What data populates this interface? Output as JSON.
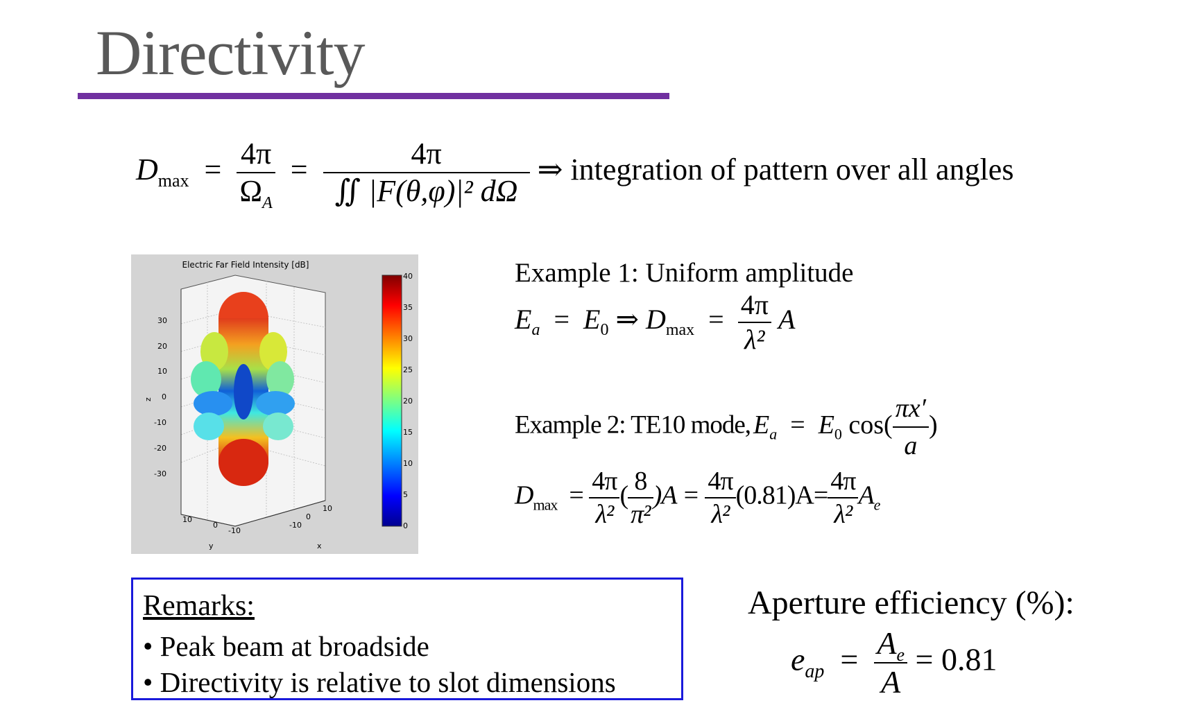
{
  "slide": {
    "title": "Directivity",
    "accent_color": "#7030a0",
    "formula_main": {
      "lhs_D": "D",
      "lhs_sub": "max",
      "num1": "4π",
      "den1": "Ω",
      "den1_sub": "A",
      "num2": "4π",
      "den2": "∬ |F(θ,φ)|² dΩ",
      "arrow": "⇒",
      "note": "integration of pattern over all angles"
    },
    "figure": {
      "title": "Electric Far Field Intensity [dB]",
      "z_label": "z",
      "y_label": "y",
      "x_label": "x",
      "z_ticks": [
        "30",
        "20",
        "10",
        "0",
        "-10",
        "-20",
        "-30"
      ],
      "y_ticks": [
        "10",
        "0",
        "-10"
      ],
      "x_ticks": [
        "-10",
        "0",
        "10"
      ],
      "colorbar_ticks": [
        "40",
        "35",
        "30",
        "25",
        "20",
        "15",
        "10",
        "5",
        "0"
      ]
    },
    "example1": {
      "heading": "Example 1: Uniform amplitude",
      "equation": {
        "Ea": "E",
        "Ea_sub": "a",
        "E0": "E",
        "E0_sub": "0",
        "arrow": "⇒",
        "D": "D",
        "D_sub": "max",
        "num": "4π",
        "den": "λ²",
        "tail": "A"
      }
    },
    "example2": {
      "heading": "Example 2: TE10 mode,",
      "field": {
        "lhs": "E",
        "lhs_sub": "a",
        "E0": "E",
        "E0_sub": "0",
        "cos": "cos(",
        "num": "πx′",
        "den": "a",
        "close": ")"
      },
      "directivity": {
        "D": "D",
        "D_sub": "max",
        "f1_num": "4π",
        "f1_den": "λ²",
        "f2_num": "8",
        "f2_den": "π²",
        "A1": ")A =",
        "f3_num": "4π",
        "f3_den": "λ²",
        "mid": "(0.81)A=",
        "f4_num": "4π",
        "f4_den": "λ²",
        "Ae": "A",
        "Ae_sub": "e"
      }
    },
    "remarks": {
      "heading": "Remarks:",
      "items": [
        "• Peak beam at broadside",
        "• Directivity is relative to slot dimensions"
      ],
      "border_color": "#1a1adb"
    },
    "efficiency": {
      "label": "Aperture efficiency (%):",
      "e": "e",
      "e_sub": "ap",
      "num": "A",
      "num_sub": "e",
      "den": "A",
      "result": "= 0.81"
    }
  }
}
